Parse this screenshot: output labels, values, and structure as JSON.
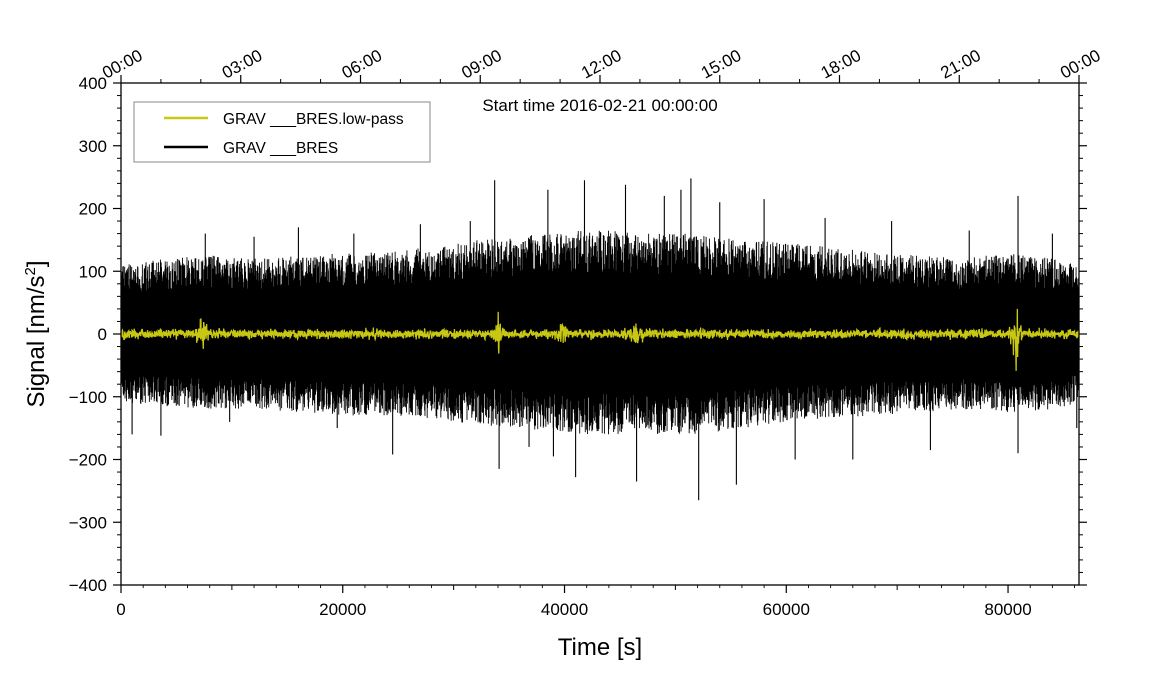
{
  "chart_data": {
    "type": "line",
    "annotation": "Start time 2016-02-21 00:00:00",
    "xlabel": "Time [s]",
    "ylabel": "Signal [nm/s",
    "ylabel_sup": "2",
    "ylabel_end": "]",
    "xlim": [
      0,
      86400
    ],
    "ylim": [
      -400,
      400
    ],
    "x_ticks": [
      0,
      20000,
      40000,
      60000,
      80000
    ],
    "x_tick_labels": [
      "0",
      "20000",
      "40000",
      "60000",
      "80000"
    ],
    "y_ticks": [
      400,
      300,
      200,
      100,
      0,
      -100,
      -200,
      -300,
      -400
    ],
    "y_tick_labels": [
      "400",
      "300",
      "200",
      "100",
      "0",
      "−100",
      "−200",
      "−300",
      "−400"
    ],
    "top_axis_ticks": [
      0,
      10800,
      21600,
      32400,
      43200,
      54000,
      64800,
      75600,
      86400
    ],
    "top_axis_labels": [
      "00:00",
      "03:00",
      "06:00",
      "09:00",
      "12:00",
      "15:00",
      "18:00",
      "21:00",
      "00:00"
    ],
    "grid": false,
    "legend_position": "top-left",
    "colors": {
      "raw": "#000000",
      "lowpass": "#c8c814"
    },
    "series": [
      {
        "name": "GRAV ___BRES",
        "color": "#000000",
        "envelope_time": [
          0,
          4000,
          8000,
          12000,
          16000,
          20000,
          24000,
          28000,
          32000,
          36000,
          40000,
          44000,
          48000,
          52000,
          56000,
          60000,
          64000,
          68000,
          72000,
          76000,
          80000,
          84000,
          86400
        ],
        "envelope_upper": [
          110,
          120,
          125,
          120,
          125,
          130,
          130,
          140,
          150,
          155,
          165,
          165,
          160,
          160,
          150,
          145,
          140,
          130,
          125,
          120,
          130,
          120,
          110
        ],
        "envelope_lower": [
          -110,
          -115,
          -120,
          -120,
          -125,
          -130,
          -130,
          -135,
          -145,
          -150,
          -160,
          -160,
          -160,
          -160,
          -150,
          -140,
          -135,
          -130,
          -125,
          -120,
          -125,
          -120,
          -110
        ],
        "spikes": [
          {
            "t": 200,
            "v": 108
          },
          {
            "t": 1000,
            "v": -160
          },
          {
            "t": 3600,
            "v": -162
          },
          {
            "t": 7600,
            "v": 160
          },
          {
            "t": 9800,
            "v": -140
          },
          {
            "t": 12000,
            "v": 155
          },
          {
            "t": 16000,
            "v": 170
          },
          {
            "t": 19500,
            "v": -150
          },
          {
            "t": 21000,
            "v": 160
          },
          {
            "t": 24500,
            "v": -192
          },
          {
            "t": 27000,
            "v": 175
          },
          {
            "t": 31500,
            "v": 180
          },
          {
            "t": 33700,
            "v": 245
          },
          {
            "t": 34100,
            "v": -215
          },
          {
            "t": 36800,
            "v": -180
          },
          {
            "t": 38500,
            "v": 230
          },
          {
            "t": 39000,
            "v": -195
          },
          {
            "t": 41000,
            "v": -228
          },
          {
            "t": 41800,
            "v": 245
          },
          {
            "t": 45500,
            "v": 238
          },
          {
            "t": 46500,
            "v": -235
          },
          {
            "t": 49000,
            "v": 220
          },
          {
            "t": 50500,
            "v": 230
          },
          {
            "t": 51400,
            "v": 248
          },
          {
            "t": 52100,
            "v": -265
          },
          {
            "t": 54000,
            "v": 210
          },
          {
            "t": 55500,
            "v": -240
          },
          {
            "t": 58000,
            "v": 215
          },
          {
            "t": 60800,
            "v": -200
          },
          {
            "t": 63500,
            "v": 185
          },
          {
            "t": 66000,
            "v": -200
          },
          {
            "t": 69500,
            "v": 180
          },
          {
            "t": 73000,
            "v": -185
          },
          {
            "t": 76500,
            "v": 165
          },
          {
            "t": 80900,
            "v": 220
          },
          {
            "t": 80900,
            "v": -190
          },
          {
            "t": 84000,
            "v": 160
          },
          {
            "t": 86200,
            "v": -150
          }
        ]
      },
      {
        "name": "GRAV ___BRES.low-pass",
        "color": "#c8c814",
        "base_amplitude": 5,
        "bursts": [
          {
            "t": 7300,
            "amp": 22
          },
          {
            "t": 34000,
            "amp": 14
          },
          {
            "t": 39800,
            "amp": 10
          },
          {
            "t": 46500,
            "amp": 9
          },
          {
            "t": 80700,
            "amp": 32
          }
        ]
      }
    ]
  }
}
